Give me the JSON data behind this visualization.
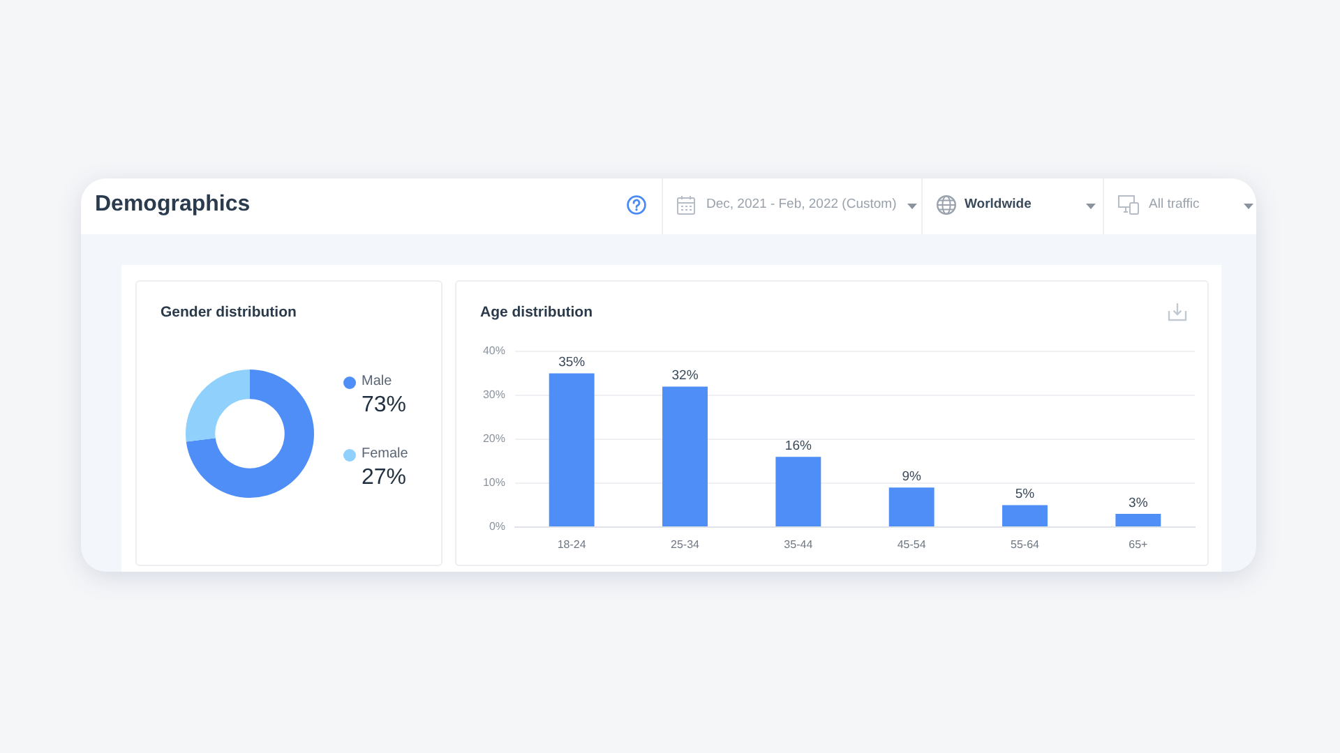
{
  "chart_data": [
    {
      "type": "other",
      "title": "Demographics",
      "annotations": [
        "Dec, 2021 - Feb, 2022 (Custom)",
        "Worldwide",
        "All traffic"
      ]
    },
    {
      "type": "donut",
      "title": "Gender distribution",
      "categories": [
        "Male",
        "Female"
      ],
      "values": [
        73,
        27
      ],
      "colors": [
        "#4f8ef7",
        "#8fd1fc"
      ],
      "value_labels": [
        "73%",
        "27%"
      ],
      "legend": "right"
    },
    {
      "type": "bar",
      "title": "Age distribution",
      "categories": [
        "18-24",
        "25-34",
        "35-44",
        "45-54",
        "55-64",
        "65+"
      ],
      "values": [
        35,
        32,
        16,
        9,
        5,
        3
      ],
      "color": "#4f8ef7",
      "value_labels": [
        "35%",
        "32%",
        "16%",
        "9%",
        "5%",
        "3%"
      ],
      "ylim": [
        0,
        40
      ],
      "yticks": [
        {
          "value": 0,
          "label": "0%"
        },
        {
          "value": 10,
          "label": "10%"
        },
        {
          "value": 20,
          "label": "20%"
        },
        {
          "value": 30,
          "label": "30%"
        },
        {
          "value": 40,
          "label": "40%"
        }
      ],
      "grid": "y"
    }
  ]
}
